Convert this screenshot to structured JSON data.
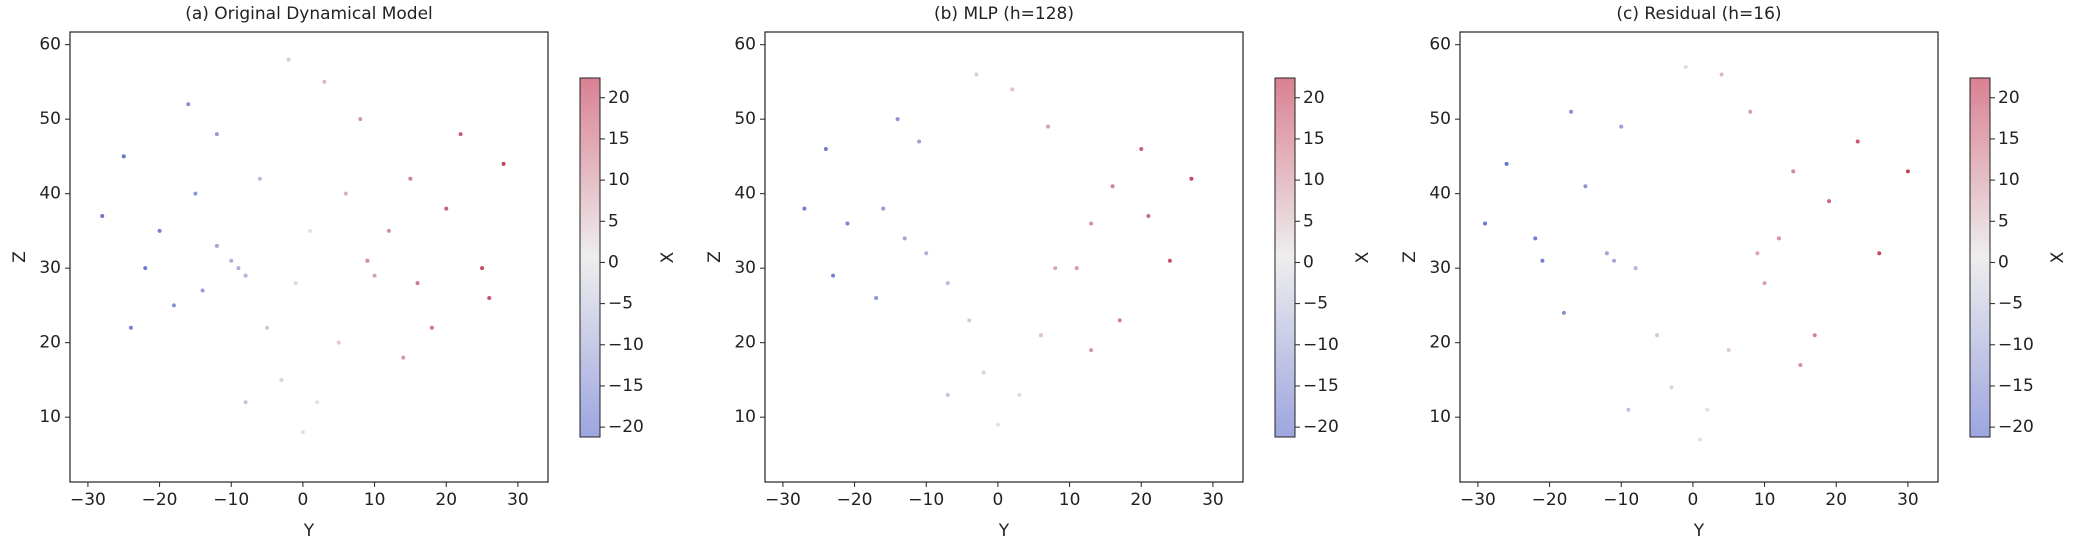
{
  "chart_data": [
    {
      "type": "scatter",
      "title": "(a) Original Dynamical Model",
      "xlabel": "Y",
      "ylabel": "Z",
      "x": [
        -10,
        -8,
        -12,
        -15,
        -20,
        -25,
        -5,
        -18,
        -22,
        -12,
        -3,
        0,
        2,
        5,
        9,
        10,
        12,
        15,
        20,
        25,
        18,
        8,
        3,
        -2,
        28,
        -28,
        14,
        -8,
        22,
        -16,
        -9,
        9,
        -14,
        16,
        -24,
        6,
        -6,
        26,
        1,
        -1
      ],
      "y": [
        31,
        29,
        33,
        40,
        35,
        45,
        22,
        25,
        30,
        48,
        15,
        8,
        12,
        20,
        31,
        29,
        35,
        42,
        38,
        30,
        22,
        50,
        55,
        58,
        44,
        37,
        18,
        12,
        48,
        52,
        30,
        31,
        27,
        28,
        22,
        40,
        42,
        26,
        35,
        28
      ],
      "c": [
        -9,
        -8,
        -11,
        -14,
        -18,
        -20,
        -4,
        -15,
        -19,
        -13,
        -2,
        0,
        1,
        4,
        8,
        9,
        11,
        13,
        17,
        20,
        14,
        10,
        6,
        -3,
        21,
        -20,
        10,
        -5,
        18,
        -15,
        -9,
        9,
        -12,
        14,
        -18,
        7,
        -7,
        19,
        1,
        -1
      ],
      "xlim": [
        -32.5,
        34.2
      ],
      "ylim": [
        1.3,
        61.7
      ],
      "xticks": [
        {
          "value": -30,
          "label": "−30"
        },
        {
          "value": -20,
          "label": "−20"
        },
        {
          "value": -10,
          "label": "−10"
        },
        0,
        10,
        20,
        30
      ],
      "yticks": [
        10,
        20,
        30,
        40,
        50,
        60
      ],
      "colorbar": {
        "label": "X",
        "lim": [
          -21.2,
          22.4
        ],
        "ticks": [
          {
            "value": -20,
            "label": "−20"
          },
          {
            "value": -15,
            "label": "−15"
          },
          {
            "value": -10,
            "label": "−10"
          },
          {
            "value": -5,
            "label": "−5"
          },
          0,
          5,
          10,
          15,
          20
        ]
      },
      "colormap": [
        "#3b4cc0",
        "#dddddd",
        "#b40426"
      ]
    },
    {
      "type": "scatter",
      "title": "(b) MLP (h=128)",
      "xlabel": "Y",
      "ylabel": "Z",
      "x": [
        -10,
        -7,
        -13,
        -16,
        -21,
        -24,
        -4,
        -17,
        -23,
        -11,
        -2,
        0,
        3,
        6,
        8,
        11,
        13,
        16,
        21,
        24,
        17,
        7,
        2,
        -3,
        27,
        -27,
        13,
        -7,
        20,
        -14
      ],
      "y": [
        32,
        28,
        34,
        38,
        36,
        46,
        23,
        26,
        29,
        47,
        16,
        9,
        13,
        21,
        30,
        30,
        36,
        41,
        37,
        31,
        23,
        49,
        54,
        56,
        42,
        38,
        19,
        13,
        46,
        50
      ],
      "c": [
        -9,
        -7,
        -11,
        -13,
        -17,
        -19,
        -4,
        -14,
        -18,
        -12,
        -2,
        0,
        2,
        5,
        8,
        10,
        11,
        13,
        16,
        19,
        13,
        9,
        5,
        -3,
        20,
        -19,
        10,
        -5,
        17,
        -14
      ],
      "xlim": [
        -32.5,
        34.2
      ],
      "ylim": [
        1.3,
        61.7
      ],
      "xticks": [
        {
          "value": -30,
          "label": "−30"
        },
        {
          "value": -20,
          "label": "−20"
        },
        {
          "value": -10,
          "label": "−10"
        },
        0,
        10,
        20,
        30
      ],
      "yticks": [
        10,
        20,
        30,
        40,
        50,
        60
      ],
      "colorbar": {
        "label": "X",
        "lim": [
          -21.2,
          22.4
        ],
        "ticks": [
          {
            "value": -20,
            "label": "−20"
          },
          {
            "value": -15,
            "label": "−15"
          },
          {
            "value": -10,
            "label": "−10"
          },
          {
            "value": -5,
            "label": "−5"
          },
          0,
          5,
          10,
          15,
          20
        ]
      },
      "colormap": [
        "#3b4cc0",
        "#dddddd",
        "#b40426"
      ]
    },
    {
      "type": "scatter",
      "title": "(c) Residual (h=16)",
      "xlabel": "Y",
      "ylabel": "Z",
      "x": [
        -11,
        -8,
        -12,
        -15,
        -22,
        -26,
        -5,
        -18,
        -21,
        -10,
        -3,
        1,
        2,
        5,
        9,
        10,
        12,
        14,
        19,
        26,
        17,
        8,
        4,
        -1,
        30,
        -29,
        15,
        -9,
        23,
        -17
      ],
      "y": [
        31,
        30,
        32,
        41,
        34,
        44,
        21,
        24,
        31,
        49,
        14,
        7,
        11,
        19,
        32,
        28,
        34,
        43,
        39,
        32,
        21,
        51,
        56,
        57,
        43,
        36,
        17,
        11,
        47,
        51
      ],
      "c": [
        -10,
        -8,
        -11,
        -14,
        -18,
        -20,
        -4,
        -15,
        -18,
        -12,
        -2,
        0,
        1,
        4,
        8,
        9,
        11,
        12,
        16,
        20,
        13,
        9,
        6,
        -1,
        21,
        -20,
        11,
        -6,
        18,
        -15
      ],
      "xlim": [
        -32.5,
        34.2
      ],
      "ylim": [
        1.3,
        61.7
      ],
      "xticks": [
        {
          "value": -30,
          "label": "−30"
        },
        {
          "value": -20,
          "label": "−20"
        },
        {
          "value": -10,
          "label": "−10"
        },
        0,
        10,
        20,
        30
      ],
      "yticks": [
        10,
        20,
        30,
        40,
        50,
        60
      ],
      "colorbar": {
        "label": "X",
        "lim": [
          -21.2,
          22.4
        ],
        "ticks": [
          {
            "value": -20,
            "label": "−20"
          },
          {
            "value": -15,
            "label": "−15"
          },
          {
            "value": -10,
            "label": "−10"
          },
          {
            "value": -5,
            "label": "−5"
          },
          0,
          5,
          10,
          15,
          20
        ]
      },
      "colormap": [
        "#3b4cc0",
        "#dddddd",
        "#b40426"
      ]
    }
  ]
}
